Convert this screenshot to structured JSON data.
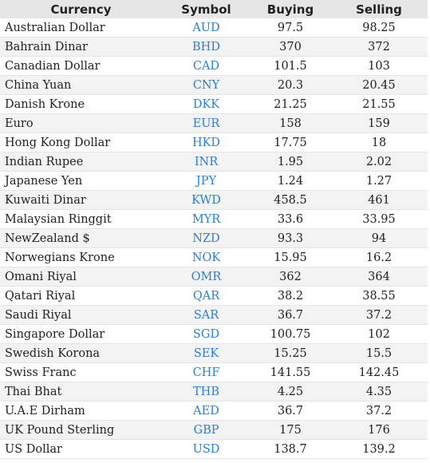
{
  "table": {
    "headers": [
      "Currency",
      "Symbol",
      "Buying",
      "Selling"
    ],
    "rows": [
      [
        "Australian Dollar",
        "AUD",
        "97.5",
        "98.25"
      ],
      [
        "Bahrain Dinar",
        "BHD",
        "370",
        "372"
      ],
      [
        "Canadian Dollar",
        "CAD",
        "101.5",
        "103"
      ],
      [
        "China Yuan",
        "CNY",
        "20.3",
        "20.45"
      ],
      [
        "Danish Krone",
        "DKK",
        "21.25",
        "21.55"
      ],
      [
        "Euro",
        "EUR",
        "158",
        "159"
      ],
      [
        "Hong Kong Dollar",
        "HKD",
        "17.75",
        "18"
      ],
      [
        "Indian Rupee",
        "INR",
        "1.95",
        "2.02"
      ],
      [
        "Japanese Yen",
        "JPY",
        "1.24",
        "1.27"
      ],
      [
        "Kuwaiti Dinar",
        "KWD",
        "458.5",
        "461"
      ],
      [
        "Malaysian Ringgit",
        "MYR",
        "33.6",
        "33.95"
      ],
      [
        "NewZealand $",
        "NZD",
        "93.3",
        "94"
      ],
      [
        "Norwegians Krone",
        "NOK",
        "15.95",
        "16.2"
      ],
      [
        "Omani Riyal",
        "OMR",
        "362",
        "364"
      ],
      [
        "Qatari Riyal",
        "QAR",
        "38.2",
        "38.55"
      ],
      [
        "Saudi Riyal",
        "SAR",
        "36.7",
        "37.2"
      ],
      [
        "Singapore Dollar",
        "SGD",
        "100.75",
        "102"
      ],
      [
        "Swedish Korona",
        "SEK",
        "15.25",
        "15.5"
      ],
      [
        "Swiss Franc",
        "CHF",
        "141.55",
        "142.45"
      ],
      [
        "Thai Bhat",
        "THB",
        "4.25",
        "4.35"
      ],
      [
        "U.A.E Dirham",
        "AED",
        "36.7",
        "37.2"
      ],
      [
        "UK Pound Sterling",
        "GBP",
        "175",
        "176"
      ],
      [
        "US Dollar",
        "USD",
        "138.7",
        "139.2"
      ]
    ]
  },
  "colors": {
    "header_bg": "#e6e6e6",
    "stripe_bg": "#f3f3f3",
    "symbol_text": "#2b7fd1",
    "text": "#222222"
  }
}
